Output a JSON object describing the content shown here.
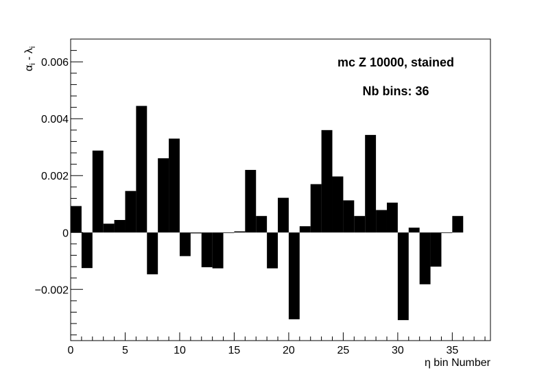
{
  "chart_data": {
    "type": "bar",
    "title": "",
    "annotations": [
      "mc Z 10000, stained",
      "Nb bins: 36"
    ],
    "xlabel": "η bin Number",
    "ylabel": "α",
    "ylabel_sub": "i",
    "ylabel_mid": " - λ",
    "ylabel_sub2": "i",
    "xlim": [
      0,
      38.5
    ],
    "ylim": [
      -0.0038,
      0.0068
    ],
    "x_ticks": [
      0,
      5,
      10,
      15,
      20,
      25,
      30,
      35
    ],
    "x_tick_labels": [
      "0",
      "5",
      "10",
      "15",
      "20",
      "25",
      "30",
      "35"
    ],
    "y_ticks": [
      -0.002,
      0,
      0.002,
      0.004,
      0.006
    ],
    "y_tick_labels": [
      "−0.002",
      "0",
      "0.002",
      "0.004",
      "0.006"
    ],
    "grid": false,
    "bar_color": "#000000",
    "bin_width": 1,
    "bin_starts": [
      0,
      1,
      2,
      3,
      4,
      5,
      6,
      7,
      8,
      9,
      10,
      11,
      12,
      13,
      14,
      15,
      16,
      17,
      18,
      19,
      20,
      21,
      22,
      23,
      24,
      25,
      26,
      27,
      28,
      29,
      30,
      31,
      32,
      33,
      34,
      35
    ],
    "values": [
      0.00093,
      -0.00125,
      0.00288,
      0.00031,
      0.00044,
      0.00146,
      0.00445,
      -0.00147,
      0.00261,
      0.0033,
      -0.00083,
      -3e-05,
      -0.00122,
      -0.00126,
      -2e-05,
      4e-05,
      0.0022,
      0.00058,
      -0.00126,
      0.00122,
      -0.00305,
      0.00022,
      0.0017,
      0.0036,
      0.00197,
      0.00113,
      0.00058,
      0.00343,
      0.00079,
      0.00105,
      -0.00308,
      0.00017,
      -0.00182,
      -0.0012,
      -2e-05,
      0.00058
    ]
  }
}
